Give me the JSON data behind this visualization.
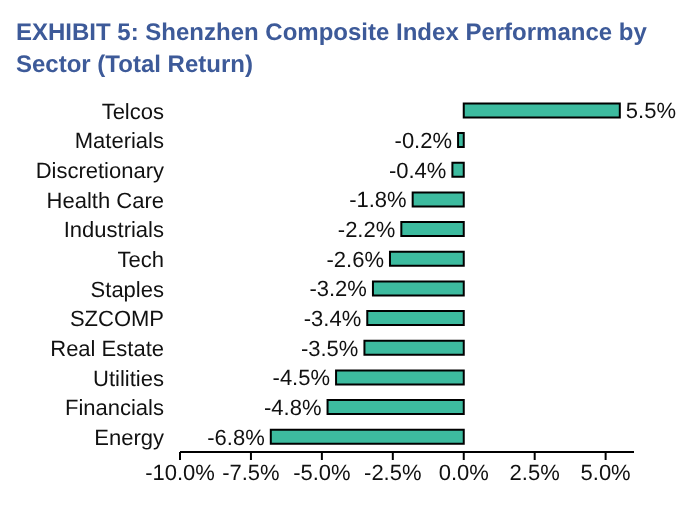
{
  "chart_data": {
    "type": "bar",
    "orientation": "horizontal",
    "title": "EXHIBIT 5: Shenzhen Composite Index Performance by Sector (Total Return)",
    "categories": [
      "Telcos",
      "Materials",
      "Discretionary",
      "Health Care",
      "Industrials",
      "Tech",
      "Staples",
      "SZCOMP",
      "Real Estate",
      "Utilities",
      "Financials",
      "Energy"
    ],
    "values": [
      5.5,
      -0.2,
      -0.4,
      -1.8,
      -2.2,
      -2.6,
      -3.2,
      -3.4,
      -3.5,
      -4.5,
      -4.8,
      -6.8
    ],
    "value_labels": [
      "5.5%",
      "-0.2%",
      "-0.4%",
      "-1.8%",
      "-2.2%",
      "-2.6%",
      "-3.2%",
      "-3.4%",
      "-3.5%",
      "-4.5%",
      "-4.8%",
      "-6.8%"
    ],
    "color": "#3dbb9f",
    "xlim": [
      -10,
      6
    ],
    "xticks": [
      {
        "value": -10,
        "label": "-10.0%"
      },
      {
        "value": -7.5,
        "label": "-7.5%"
      },
      {
        "value": -5,
        "label": "-5.0%"
      },
      {
        "value": -2.5,
        "label": "-2.5%"
      },
      {
        "value": 0,
        "label": "0.0%"
      },
      {
        "value": 2.5,
        "label": "2.5%"
      },
      {
        "value": 5,
        "label": "5.0%"
      }
    ],
    "grid": false,
    "legend": false
  }
}
